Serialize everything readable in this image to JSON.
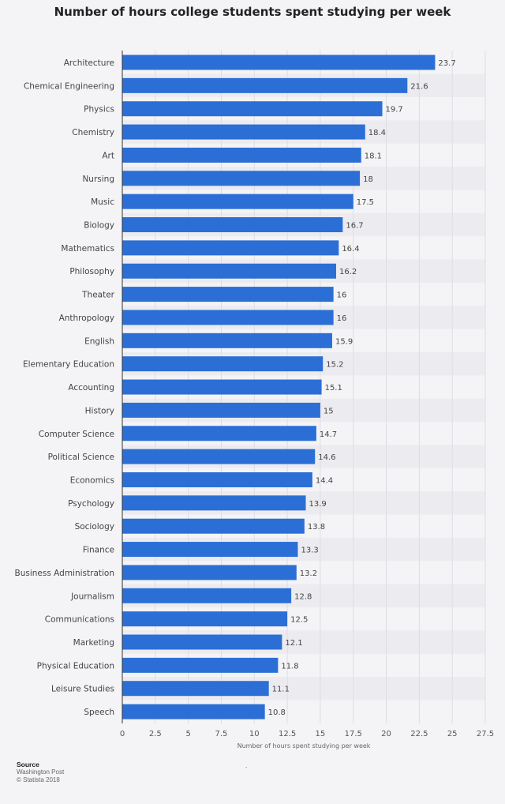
{
  "chart_data": {
    "type": "bar",
    "orientation": "horizontal",
    "title": "Number of hours college students spent studying per week",
    "xlabel": "Number of hours spent studying per week",
    "ylabel": "",
    "xlim": [
      0,
      27.5
    ],
    "x_ticks": [
      "0",
      "2.5",
      "5",
      "7.5",
      "10",
      "12.5",
      "15",
      "17.5",
      "20",
      "22.5",
      "25",
      "27.5"
    ],
    "grid": true,
    "bar_color": "#2b6fd6",
    "categories": [
      "Architecture",
      "Chemical Engineering",
      "Physics",
      "Chemistry",
      "Art",
      "Nursing",
      "Music",
      "Biology",
      "Mathematics",
      "Philosophy",
      "Theater",
      "Anthropology",
      "English",
      "Elementary Education",
      "Accounting",
      "History",
      "Computer Science",
      "Political Science",
      "Economics",
      "Psychology",
      "Sociology",
      "Finance",
      "Business Administration",
      "Journalism",
      "Communications",
      "Marketing",
      "Physical Education",
      "Leisure Studies",
      "Speech"
    ],
    "values": [
      23.7,
      21.6,
      19.7,
      18.4,
      18.1,
      18,
      17.5,
      16.7,
      16.4,
      16.2,
      16,
      16,
      15.9,
      15.2,
      15.1,
      15,
      14.7,
      14.6,
      14.4,
      13.9,
      13.8,
      13.3,
      13.2,
      12.8,
      12.5,
      12.1,
      11.8,
      11.1,
      10.8
    ],
    "value_labels": [
      "23.7",
      "21.6",
      "19.7",
      "18.4",
      "18.1",
      "18",
      "17.5",
      "16.7",
      "16.4",
      "16.2",
      "16",
      "16",
      "15.9",
      "15.2",
      "15.1",
      "15",
      "14.7",
      "14.6",
      "14.4",
      "13.9",
      "13.8",
      "13.3",
      "13.2",
      "12.8",
      "12.5",
      "12.1",
      "11.8",
      "11.1",
      "10.8"
    ]
  },
  "footer": {
    "source_title": "Source",
    "source_name": "Washington Post",
    "copyright": "© Statista 2018",
    "dot": "."
  }
}
